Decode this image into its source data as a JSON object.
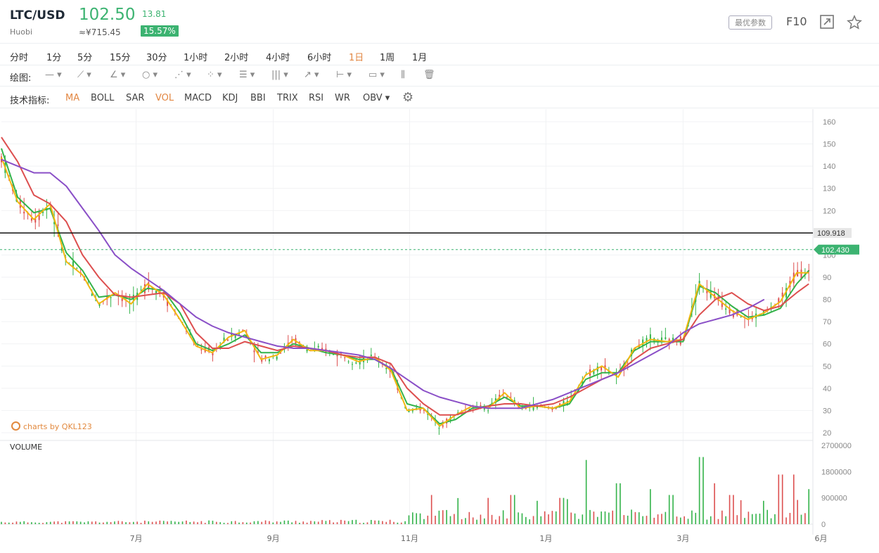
{
  "header": {
    "symbol": "LTC/USD",
    "exchange": "Huobi",
    "price": "102.50",
    "cny": "≈¥715.45",
    "change": "13.81",
    "change_pct": "15.57%",
    "params_button": "最优参数",
    "f10": "F10",
    "icons": [
      "fullscreen-icon",
      "star-icon"
    ]
  },
  "timeframes": [
    "分时",
    "1分",
    "5分",
    "15分",
    "30分",
    "1小时",
    "2小时",
    "4小时",
    "6小时",
    "1日",
    "1周",
    "1月"
  ],
  "timeframe_active": "1日",
  "drawing": {
    "label": "绘图:",
    "tools": [
      "line-tool-icon",
      "ray-tool-icon",
      "angle-tool-icon",
      "circle-tool-icon",
      "zigzag-tool-icon",
      "pattern-tool-icon",
      "fib-tool-icon",
      "bars-tool-icon",
      "arrow-tool-icon",
      "measure-tool-icon",
      "text-tool-icon",
      "candle-style-icon",
      "trash-icon"
    ]
  },
  "indicators": {
    "label": "技术指标:",
    "items": [
      "MA",
      "BOLL",
      "SAR",
      "VOL",
      "MACD",
      "KDJ",
      "BBI",
      "TRIX",
      "RSI",
      "WR",
      "OBV"
    ],
    "active": [
      "MA",
      "VOL"
    ],
    "settings_icon": "gear-icon"
  },
  "watermark": "charts by QKL123",
  "volume_label": "VOLUME",
  "chart_data": {
    "type": "line",
    "price_axis": {
      "ticks": [
        160,
        150,
        140,
        130,
        120,
        110,
        100,
        90,
        80,
        70,
        60,
        50,
        40,
        30,
        20
      ],
      "min": 20,
      "max": 160
    },
    "volume_axis": {
      "ticks": [
        "2700000",
        "1800000",
        "900000",
        "0"
      ],
      "min": 0,
      "max": 2700000
    },
    "x_labels": [
      "7月",
      "9月",
      "11月",
      "1月",
      "3月",
      "6月"
    ],
    "x_label_pos": [
      0.166,
      0.335,
      0.503,
      0.671,
      0.84,
      1.01
    ],
    "hline_value": 109.918,
    "hline_label": "109.918",
    "last_value": 102.43,
    "last_label": "102.430",
    "colors": {
      "ma5": "#f2b711",
      "ma10": "#33b34a",
      "ma30": "#dd4f4f",
      "ma60": "#8a4fc7",
      "up": "#33b34a",
      "down": "#dd4f4f",
      "hline": "#111111",
      "last": "#3cb371"
    },
    "ma_lines": [
      {
        "name": "ma10",
        "points": [
          [
            0,
            148
          ],
          [
            0.02,
            126
          ],
          [
            0.04,
            119
          ],
          [
            0.06,
            121
          ],
          [
            0.08,
            101
          ],
          [
            0.1,
            93
          ],
          [
            0.12,
            81
          ],
          [
            0.14,
            82
          ],
          [
            0.16,
            80
          ],
          [
            0.18,
            85
          ],
          [
            0.2,
            84
          ],
          [
            0.22,
            74
          ],
          [
            0.24,
            60
          ],
          [
            0.26,
            57
          ],
          [
            0.28,
            60
          ],
          [
            0.3,
            64
          ],
          [
            0.32,
            56
          ],
          [
            0.34,
            56
          ],
          [
            0.36,
            60
          ],
          [
            0.38,
            58
          ],
          [
            0.4,
            56
          ],
          [
            0.42,
            55
          ],
          [
            0.44,
            53
          ],
          [
            0.46,
            53
          ],
          [
            0.48,
            49
          ],
          [
            0.5,
            33
          ],
          [
            0.52,
            31
          ],
          [
            0.54,
            24
          ],
          [
            0.56,
            26
          ],
          [
            0.58,
            31
          ],
          [
            0.6,
            32
          ],
          [
            0.62,
            36
          ],
          [
            0.64,
            32
          ],
          [
            0.66,
            32
          ],
          [
            0.68,
            31
          ],
          [
            0.7,
            33
          ],
          [
            0.72,
            44
          ],
          [
            0.74,
            47
          ],
          [
            0.76,
            47
          ],
          [
            0.78,
            57
          ],
          [
            0.8,
            61
          ],
          [
            0.82,
            61
          ],
          [
            0.84,
            61
          ],
          [
            0.86,
            86
          ],
          [
            0.88,
            83
          ],
          [
            0.9,
            77
          ],
          [
            0.92,
            72
          ],
          [
            0.94,
            73
          ],
          [
            0.96,
            76
          ],
          [
            0.98,
            87
          ],
          [
            0.995,
            93
          ]
        ]
      },
      {
        "name": "ma5",
        "points": [
          [
            0,
            144
          ],
          [
            0.02,
            124
          ],
          [
            0.04,
            116
          ],
          [
            0.06,
            123
          ],
          [
            0.08,
            97
          ],
          [
            0.1,
            91
          ],
          [
            0.12,
            78
          ],
          [
            0.14,
            83
          ],
          [
            0.16,
            78
          ],
          [
            0.18,
            87
          ],
          [
            0.2,
            82
          ],
          [
            0.22,
            71
          ],
          [
            0.24,
            59
          ],
          [
            0.26,
            56
          ],
          [
            0.28,
            63
          ],
          [
            0.3,
            66
          ],
          [
            0.32,
            53
          ],
          [
            0.34,
            55
          ],
          [
            0.36,
            62
          ],
          [
            0.38,
            57
          ],
          [
            0.4,
            57
          ],
          [
            0.42,
            55
          ],
          [
            0.44,
            52
          ],
          [
            0.46,
            54
          ],
          [
            0.48,
            48
          ],
          [
            0.5,
            30
          ],
          [
            0.52,
            31
          ],
          [
            0.54,
            23
          ],
          [
            0.56,
            28
          ],
          [
            0.58,
            32
          ],
          [
            0.6,
            31
          ],
          [
            0.62,
            38
          ],
          [
            0.64,
            31
          ],
          [
            0.66,
            32
          ],
          [
            0.68,
            31
          ],
          [
            0.7,
            34
          ],
          [
            0.72,
            46
          ],
          [
            0.74,
            50
          ],
          [
            0.76,
            45
          ],
          [
            0.78,
            58
          ],
          [
            0.8,
            62
          ],
          [
            0.82,
            61
          ],
          [
            0.84,
            62
          ],
          [
            0.86,
            87
          ],
          [
            0.88,
            81
          ],
          [
            0.9,
            75
          ],
          [
            0.92,
            71
          ],
          [
            0.94,
            74
          ],
          [
            0.96,
            79
          ],
          [
            0.98,
            92
          ],
          [
            0.995,
            92
          ]
        ]
      },
      {
        "name": "ma30",
        "points": [
          [
            0,
            153
          ],
          [
            0.02,
            142
          ],
          [
            0.04,
            127
          ],
          [
            0.06,
            123
          ],
          [
            0.08,
            115
          ],
          [
            0.1,
            100
          ],
          [
            0.12,
            90
          ],
          [
            0.14,
            82
          ],
          [
            0.16,
            81
          ],
          [
            0.18,
            82
          ],
          [
            0.2,
            83
          ],
          [
            0.22,
            78
          ],
          [
            0.24,
            65
          ],
          [
            0.26,
            58
          ],
          [
            0.28,
            58
          ],
          [
            0.3,
            61
          ],
          [
            0.32,
            59
          ],
          [
            0.34,
            57
          ],
          [
            0.36,
            59
          ],
          [
            0.38,
            58
          ],
          [
            0.4,
            57
          ],
          [
            0.42,
            55
          ],
          [
            0.44,
            54
          ],
          [
            0.46,
            54
          ],
          [
            0.48,
            51
          ],
          [
            0.5,
            40
          ],
          [
            0.52,
            33
          ],
          [
            0.54,
            28
          ],
          [
            0.56,
            28
          ],
          [
            0.58,
            30
          ],
          [
            0.6,
            32
          ],
          [
            0.62,
            33
          ],
          [
            0.64,
            33
          ],
          [
            0.66,
            32
          ],
          [
            0.68,
            33
          ],
          [
            0.7,
            36
          ],
          [
            0.72,
            40
          ],
          [
            0.74,
            44
          ],
          [
            0.76,
            47
          ],
          [
            0.78,
            53
          ],
          [
            0.8,
            58
          ],
          [
            0.82,
            60
          ],
          [
            0.84,
            62
          ],
          [
            0.86,
            73
          ],
          [
            0.88,
            80
          ],
          [
            0.9,
            83
          ],
          [
            0.92,
            78
          ],
          [
            0.94,
            75
          ],
          [
            0.96,
            77
          ],
          [
            0.98,
            83
          ],
          [
            0.995,
            87
          ]
        ]
      },
      {
        "name": "ma60",
        "points": [
          [
            0,
            143
          ],
          [
            0.02,
            140
          ],
          [
            0.04,
            137
          ],
          [
            0.06,
            137
          ],
          [
            0.08,
            131
          ],
          [
            0.1,
            121
          ],
          [
            0.12,
            111
          ],
          [
            0.14,
            100
          ],
          [
            0.16,
            94
          ],
          [
            0.18,
            89
          ],
          [
            0.2,
            84
          ],
          [
            0.22,
            78
          ],
          [
            0.24,
            72
          ],
          [
            0.26,
            68
          ],
          [
            0.28,
            65
          ],
          [
            0.3,
            63
          ],
          [
            0.32,
            61
          ],
          [
            0.34,
            59
          ],
          [
            0.36,
            58
          ],
          [
            0.38,
            58
          ],
          [
            0.4,
            57
          ],
          [
            0.42,
            56
          ],
          [
            0.44,
            55
          ],
          [
            0.46,
            53
          ],
          [
            0.48,
            49
          ],
          [
            0.5,
            44
          ],
          [
            0.52,
            39
          ],
          [
            0.54,
            36
          ],
          [
            0.56,
            34
          ],
          [
            0.58,
            32
          ],
          [
            0.6,
            31
          ],
          [
            0.62,
            31
          ],
          [
            0.64,
            31
          ],
          [
            0.66,
            33
          ],
          [
            0.68,
            35
          ],
          [
            0.7,
            38
          ],
          [
            0.72,
            41
          ],
          [
            0.74,
            44
          ],
          [
            0.76,
            47
          ],
          [
            0.78,
            51
          ],
          [
            0.8,
            55
          ],
          [
            0.82,
            59
          ],
          [
            0.84,
            65
          ],
          [
            0.86,
            69
          ],
          [
            0.88,
            71
          ],
          [
            0.9,
            73
          ],
          [
            0.92,
            76
          ],
          [
            0.94,
            80
          ]
        ]
      }
    ],
    "volume_peaks": [
      [
        0.53,
        1000000
      ],
      [
        0.6,
        900000
      ],
      [
        0.63,
        1000000
      ],
      [
        0.66,
        800000
      ],
      [
        0.69,
        900000
      ],
      [
        0.72,
        2200000
      ],
      [
        0.76,
        1400000
      ],
      [
        0.8,
        1200000
      ],
      [
        0.825,
        1000000
      ],
      [
        0.863,
        2300000
      ],
      [
        0.88,
        1400000
      ],
      [
        0.9,
        1000000
      ],
      [
        0.94,
        800000
      ],
      [
        0.96,
        1700000
      ],
      [
        0.975,
        1700000
      ],
      [
        0.995,
        1200000
      ]
    ]
  }
}
